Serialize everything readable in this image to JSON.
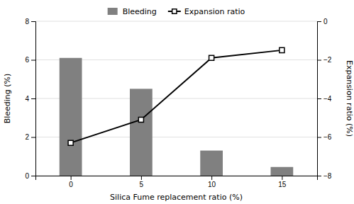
{
  "chart_data": {
    "type": "bar",
    "x": [
      0,
      5,
      10,
      15
    ],
    "xlabel": "Silica Fume replacement ratio (%)",
    "ylabel": "Bleeding (%)",
    "y2label": "Expansion ratio (%)",
    "xlim": [
      -2.5,
      17.5
    ],
    "xticks": [
      0,
      5,
      10,
      15
    ],
    "ylim": [
      0,
      8
    ],
    "yticks": [
      0,
      2,
      4,
      6,
      8
    ],
    "y2lim": [
      -8.0,
      0.0
    ],
    "y2ticks": [
      -8,
      -6,
      -4,
      -2,
      0
    ],
    "grid": true,
    "legend": "top",
    "series": [
      {
        "name": "Bleeding",
        "type": "bar",
        "color": "#808080",
        "values": [
          6.1,
          4.5,
          1.3,
          0.45
        ]
      },
      {
        "name": "Expansion ratio",
        "type": "line",
        "axis": "y2",
        "color": "#000000",
        "marker": "square",
        "values": [
          -6.3,
          -5.1,
          -1.9,
          -1.5
        ]
      }
    ]
  }
}
